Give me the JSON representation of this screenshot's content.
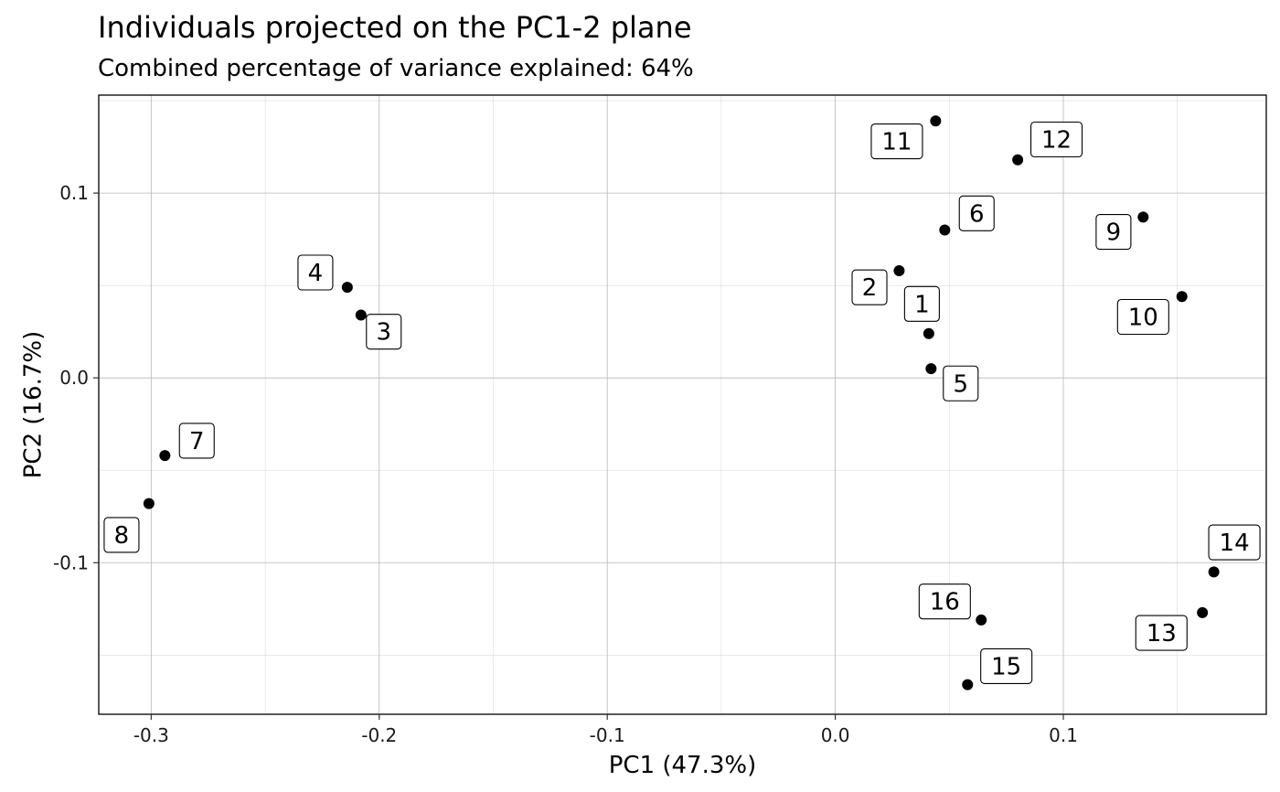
{
  "chart_data": {
    "type": "scatter",
    "title": "Individuals projected on the PC1-2 plane",
    "subtitle": "Combined percentage of variance explained: 64%",
    "xlabel": "PC1 (47.3%)",
    "ylabel": "PC2 (16.7%)",
    "xlim": [
      -0.323,
      0.189
    ],
    "ylim": [
      -0.182,
      0.153
    ],
    "x_ticks": [
      -0.3,
      -0.2,
      -0.1,
      0.0,
      0.1
    ],
    "x_tick_labels": [
      "-0.3",
      "-0.2",
      "-0.1",
      "0.0",
      "0.1"
    ],
    "y_ticks": [
      -0.1,
      0.0,
      0.1
    ],
    "y_tick_labels": [
      "-0.1",
      "0.0",
      "0.1"
    ],
    "grid": true,
    "point_color": "#000000",
    "points": [
      {
        "label": "1",
        "x": 0.041,
        "y": 0.024,
        "lx": 0.038,
        "ly": 0.04
      },
      {
        "label": "2",
        "x": 0.028,
        "y": 0.058,
        "lx": 0.015,
        "ly": 0.049
      },
      {
        "label": "3",
        "x": -0.208,
        "y": 0.034,
        "lx": -0.198,
        "ly": 0.025
      },
      {
        "label": "4",
        "x": -0.214,
        "y": 0.049,
        "lx": -0.228,
        "ly": 0.057
      },
      {
        "label": "5",
        "x": 0.042,
        "y": 0.005,
        "lx": 0.055,
        "ly": -0.003
      },
      {
        "label": "6",
        "x": 0.048,
        "y": 0.08,
        "lx": 0.062,
        "ly": 0.089
      },
      {
        "label": "7",
        "x": -0.294,
        "y": -0.042,
        "lx": -0.28,
        "ly": -0.034
      },
      {
        "label": "8",
        "x": -0.301,
        "y": -0.068,
        "lx": -0.313,
        "ly": -0.085
      },
      {
        "label": "9",
        "x": 0.135,
        "y": 0.087,
        "lx": 0.122,
        "ly": 0.079
      },
      {
        "label": "10",
        "x": 0.152,
        "y": 0.044,
        "lx": 0.135,
        "ly": 0.033
      },
      {
        "label": "11",
        "x": 0.044,
        "y": 0.139,
        "lx": 0.027,
        "ly": 0.128
      },
      {
        "label": "12",
        "x": 0.08,
        "y": 0.118,
        "lx": 0.097,
        "ly": 0.129
      },
      {
        "label": "13",
        "x": 0.161,
        "y": -0.127,
        "lx": 0.143,
        "ly": -0.138
      },
      {
        "label": "14",
        "x": 0.166,
        "y": -0.105,
        "lx": 0.175,
        "ly": -0.089
      },
      {
        "label": "15",
        "x": 0.058,
        "y": -0.166,
        "lx": 0.075,
        "ly": -0.156
      },
      {
        "label": "16",
        "x": 0.064,
        "y": -0.131,
        "lx": 0.048,
        "ly": -0.121
      }
    ]
  }
}
